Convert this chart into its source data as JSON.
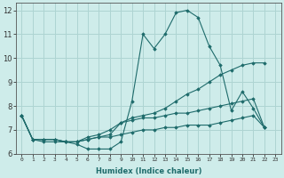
{
  "xlabel": "Humidex (Indice chaleur)",
  "background_color": "#ceecea",
  "grid_color": "#aed4d2",
  "line_color": "#1e6b6b",
  "xlim": [
    -0.5,
    23.5
  ],
  "ylim": [
    6,
    12.3
  ],
  "yticks": [
    6,
    7,
    8,
    9,
    10,
    11,
    12
  ],
  "xticks": [
    0,
    1,
    2,
    3,
    4,
    5,
    6,
    7,
    8,
    9,
    10,
    11,
    12,
    13,
    14,
    15,
    16,
    17,
    18,
    19,
    20,
    21,
    22,
    23
  ],
  "series": [
    [
      7.6,
      6.6,
      6.5,
      6.5,
      6.5,
      6.4,
      6.2,
      6.2,
      6.2,
      6.5,
      8.2,
      11.0,
      10.4,
      11.0,
      11.9,
      12.0,
      11.7,
      10.5,
      9.7,
      7.8,
      8.6,
      7.9,
      7.1
    ],
    [
      7.6,
      6.6,
      6.6,
      6.6,
      6.5,
      6.5,
      6.6,
      6.7,
      6.8,
      7.3,
      7.5,
      7.6,
      7.7,
      7.9,
      8.2,
      8.5,
      8.7,
      9.0,
      9.3,
      9.5,
      9.7,
      9.8,
      9.8
    ],
    [
      7.6,
      6.6,
      6.6,
      6.6,
      6.5,
      6.5,
      6.7,
      6.8,
      7.0,
      7.3,
      7.4,
      7.5,
      7.5,
      7.6,
      7.7,
      7.7,
      7.8,
      7.9,
      8.0,
      8.1,
      8.2,
      8.3,
      7.1
    ],
    [
      7.6,
      6.6,
      6.6,
      6.6,
      6.5,
      6.5,
      6.6,
      6.7,
      6.7,
      6.8,
      6.9,
      7.0,
      7.0,
      7.1,
      7.1,
      7.2,
      7.2,
      7.2,
      7.3,
      7.4,
      7.5,
      7.6,
      7.1
    ]
  ]
}
